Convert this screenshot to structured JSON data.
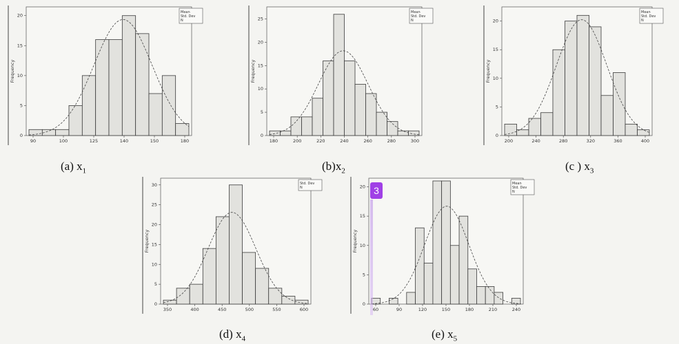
{
  "overlay_badge": "3",
  "chart_data": [
    {
      "type": "bar",
      "caption": {
        "prefix": "(a) x",
        "sub": "1"
      },
      "ylabel": "Frequency",
      "x_ticks": [
        "90",
        "100",
        "125",
        "140",
        "150",
        "180"
      ],
      "y_ticks": [
        "0",
        "5",
        "10",
        "15",
        "20"
      ],
      "ylim": [
        0,
        21
      ],
      "values": [
        1,
        1,
        1,
        5,
        10,
        16,
        16,
        20,
        17,
        7,
        10,
        2
      ],
      "legend": {
        "mean": "Mean",
        "std": "Std. Dev",
        "n": "N"
      },
      "normal_curve": true
    },
    {
      "type": "bar",
      "caption": {
        "prefix": "(b)x",
        "sub": "2"
      },
      "ylabel": "Frequency",
      "x_ticks": [
        "180",
        "200",
        "220",
        "240",
        "260",
        "280",
        "300"
      ],
      "y_ticks": [
        "0",
        "5",
        "10",
        "15",
        "20",
        "25"
      ],
      "ylim": [
        0,
        27
      ],
      "values": [
        1,
        1,
        4,
        4,
        8,
        16,
        26,
        16,
        11,
        9,
        5,
        3,
        1,
        1
      ],
      "legend": {
        "mean": "Mean",
        "std": "Std. Dev",
        "n": "N"
      },
      "normal_curve": true
    },
    {
      "type": "bar",
      "caption": {
        "prefix": "(c ) x",
        "sub": "3"
      },
      "ylabel": "Frequency",
      "x_ticks": [
        "200",
        "240",
        "280",
        "320",
        "360",
        "400"
      ],
      "y_ticks": [
        "0",
        "5",
        "10",
        "15",
        "20"
      ],
      "ylim": [
        0,
        22
      ],
      "values": [
        2,
        1,
        3,
        4,
        15,
        20,
        21,
        19,
        7,
        11,
        2,
        1
      ],
      "legend": {
        "mean": "Mean",
        "std": "Std. Dev",
        "n": "N"
      },
      "normal_curve": true
    },
    {
      "type": "bar",
      "caption": {
        "prefix": "(d) x",
        "sub": "4"
      },
      "ylabel": "Frequency",
      "x_ticks": [
        "350",
        "400",
        "450",
        "500",
        "550",
        "600"
      ],
      "y_ticks": [
        "0",
        "5",
        "10",
        "15",
        "20",
        "25",
        "30"
      ],
      "ylim": [
        0,
        31
      ],
      "values": [
        1,
        4,
        5,
        14,
        22,
        30,
        13,
        9,
        4,
        2,
        1
      ],
      "legend": {
        "std": "Std. Dev",
        "n": "N"
      },
      "normal_curve": true
    },
    {
      "type": "bar",
      "caption": {
        "prefix": "(e) x",
        "sub": "5"
      },
      "ylabel": "Frequency",
      "x_ticks": [
        "60",
        "90",
        "120",
        "150",
        "180",
        "210",
        "240"
      ],
      "y_ticks": [
        "0",
        "5",
        "10",
        "15",
        "20"
      ],
      "ylim": [
        0,
        21
      ],
      "values": [
        1,
        0,
        1,
        0,
        2,
        13,
        7,
        21,
        21,
        10,
        15,
        6,
        3,
        3,
        2,
        0,
        1
      ],
      "legend": {
        "mean": "Mean",
        "std": "Std. Dev",
        "n": "N"
      },
      "normal_curve": true
    }
  ]
}
